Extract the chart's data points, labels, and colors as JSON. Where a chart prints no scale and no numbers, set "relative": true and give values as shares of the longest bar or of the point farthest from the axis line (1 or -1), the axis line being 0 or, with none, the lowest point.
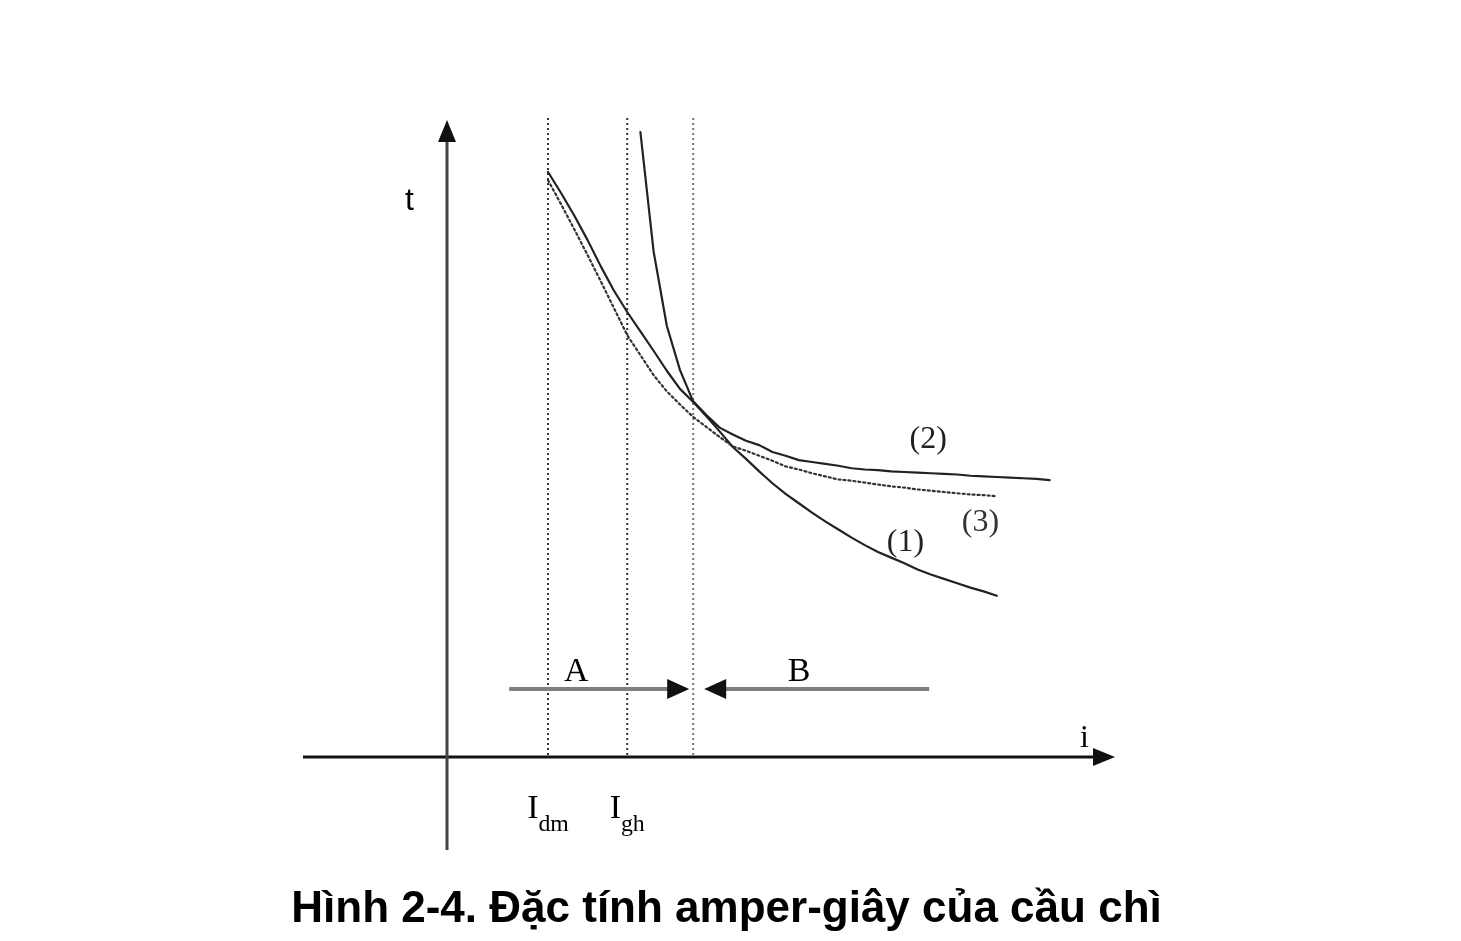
{
  "chart_data": {
    "type": "line",
    "title": "Hình 2-4. Đặc tính amper-giây của cầu chì",
    "xlabel": "i",
    "ylabel": "t",
    "relative": true,
    "categories": [
      "I$_{dm}$",
      null,
      null,
      null,
      null,
      null,
      "I$_{gh}$",
      null,
      null,
      null,
      null,
      null,
      null,
      null,
      null,
      null,
      null,
      null,
      null,
      null,
      null,
      null,
      null,
      null,
      null,
      null,
      null,
      null,
      null,
      null,
      null,
      null,
      null,
      null,
      null,
      null,
      null,
      null,
      null,
      null
    ],
    "series": [
      {
        "name": "(1)",
        "color": "#222222",
        "line_style": "solid",
        "values": [
          0.936,
          0.902,
          0.866,
          0.827,
          0.785,
          0.746,
          0.712,
          0.681,
          0.65,
          0.618,
          0.589,
          0.568,
          0.545,
          0.521,
          0.496,
          0.477,
          0.457,
          0.438,
          0.421,
          0.406,
          0.391,
          0.377,
          0.364,
          0.351,
          0.339,
          0.328,
          0.319,
          0.31,
          0.3,
          0.292,
          0.285,
          0.278,
          0.271,
          0.265,
          0.258,
          null,
          null,
          null,
          null,
          null
        ]
      },
      {
        "name": "(2)",
        "color": "#222222",
        "line_style": "solid",
        "values": [
          null,
          null,
          null,
          null,
          null,
          null,
          null,
          1.0,
          0.809,
          0.69,
          0.619,
          0.569,
          0.547,
          0.527,
          0.516,
          0.506,
          0.499,
          0.488,
          0.482,
          0.475,
          0.472,
          0.469,
          0.466,
          0.462,
          0.46,
          0.459,
          0.457,
          0.456,
          0.455,
          0.454,
          0.453,
          0.452,
          0.45,
          0.449,
          0.448,
          0.447,
          0.446,
          0.445,
          0.443,
          null
        ]
      },
      {
        "name": "(3)",
        "color": "#333333",
        "line_style": "dotted",
        "values": [
          0.923,
          0.884,
          0.844,
          0.803,
          0.761,
          0.718,
          0.675,
          0.643,
          0.611,
          0.585,
          0.564,
          0.544,
          0.528,
          0.512,
          0.497,
          0.49,
          0.482,
          0.474,
          0.465,
          0.46,
          0.454,
          0.449,
          0.444,
          0.442,
          0.439,
          0.436,
          0.433,
          0.431,
          0.428,
          0.426,
          0.424,
          0.422,
          0.42,
          0.419,
          0.417,
          null,
          null,
          null,
          null,
          null
        ]
      }
    ],
    "ref_lines": [
      {
        "axis": "x",
        "value": "I$_{dm}$",
        "line_style": "dotted",
        "color": "#333333"
      },
      {
        "axis": "x",
        "value": "I$_{gh}$",
        "line_style": "dotted",
        "color": "#333333"
      }
    ],
    "annotations": [
      "A",
      "B"
    ]
  }
}
